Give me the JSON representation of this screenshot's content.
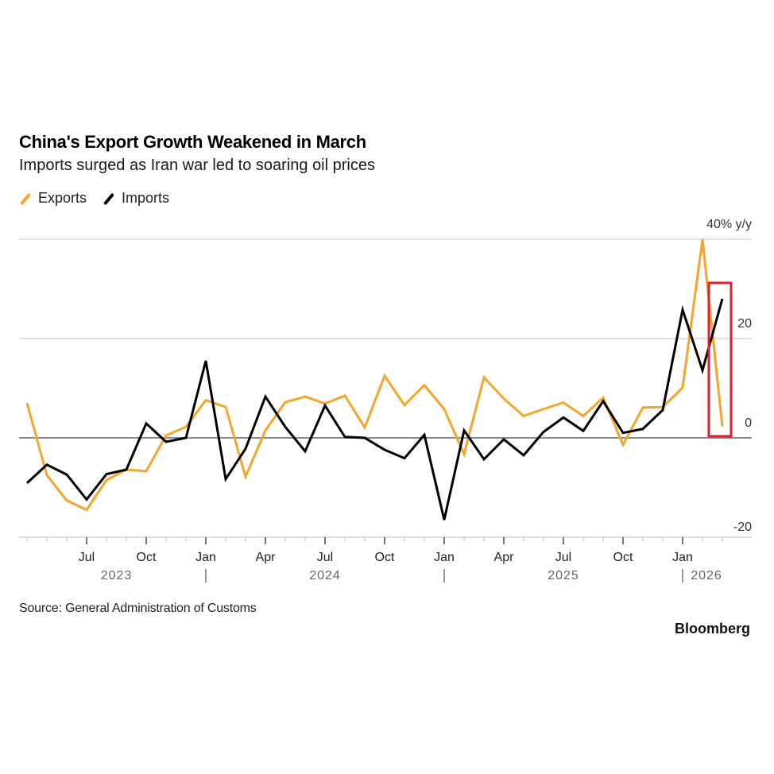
{
  "header": {
    "title": "China's Export Growth Weakened in March",
    "subtitle": "Imports surged as Iran war led to soaring oil prices"
  },
  "legend": [
    {
      "label": "Exports",
      "color": "#f5a52a"
    },
    {
      "label": "Imports",
      "color": "#000000"
    }
  ],
  "footer": {
    "source": "Source: General Administration of Customs",
    "brand": "Bloomberg"
  },
  "highlight": {
    "description": "red box around latest data point",
    "color": "#e0202a"
  },
  "chart_data": {
    "type": "line",
    "title": "China's Export Growth Weakened in March",
    "subtitle": "Imports surged as Iran war led to soaring oil prices",
    "ylabel": "% y/y",
    "ylim": [
      -20,
      40
    ],
    "yticks": [
      {
        "value": 40,
        "label": "40% y/y"
      },
      {
        "value": 20,
        "label": "20"
      },
      {
        "value": 0,
        "label": "0"
      },
      {
        "value": -20,
        "label": "-20"
      }
    ],
    "grid": true,
    "legend_position": "top-left",
    "x": [
      "2023-04",
      "2023-05",
      "2023-06",
      "2023-07",
      "2023-08",
      "2023-09",
      "2023-10",
      "2023-11",
      "2023-12",
      "2024-01",
      "2024-02",
      "2024-03",
      "2024-04",
      "2024-05",
      "2024-06",
      "2024-07",
      "2024-08",
      "2024-09",
      "2024-10",
      "2024-11",
      "2024-12",
      "2025-01",
      "2025-02",
      "2025-03",
      "2025-04",
      "2025-05",
      "2025-06",
      "2025-07",
      "2025-08",
      "2025-09",
      "2025-10",
      "2025-11",
      "2025-12",
      "2026-01",
      "2026-02",
      "2026-03"
    ],
    "month_ticks": [
      {
        "index": 2,
        "label": "Jul"
      },
      {
        "index": 5,
        "label": "Oct"
      },
      {
        "index": 8,
        "label": "Jan"
      },
      {
        "index": 11,
        "label": "Apr"
      },
      {
        "index": 14,
        "label": "Jul"
      },
      {
        "index": 17,
        "label": "Oct"
      },
      {
        "index": 20,
        "label": "Jan"
      },
      {
        "index": 23,
        "label": "Apr"
      },
      {
        "index": 26,
        "label": "Jul"
      },
      {
        "index": 29,
        "label": "Oct"
      },
      {
        "index": 32,
        "label": "Jan"
      }
    ],
    "year_labels": [
      {
        "index": 3.5,
        "label": "2023"
      },
      {
        "index": 14,
        "label": "2024"
      },
      {
        "index": 26,
        "label": "2025"
      },
      {
        "index": 33.2,
        "label": "2026"
      }
    ],
    "year_separators": [
      8,
      20,
      32
    ],
    "series": [
      {
        "name": "Exports",
        "color": "#f5a52a",
        "values": [
          7.0,
          -7.5,
          -12.6,
          -14.5,
          -8.5,
          -6.4,
          -6.7,
          0.5,
          2.2,
          7.6,
          6.2,
          -7.8,
          1.5,
          7.2,
          8.3,
          6.9,
          8.5,
          2.1,
          12.5,
          6.6,
          10.6,
          5.8,
          -3.3,
          12.2,
          7.9,
          4.4,
          5.8,
          7.1,
          4.4,
          8.1,
          -1.4,
          6.1,
          6.2,
          10.1,
          40.0,
          2.3
        ]
      },
      {
        "name": "Imports",
        "color": "#000000",
        "values": [
          -9.1,
          -5.4,
          -7.4,
          -12.4,
          -7.3,
          -6.4,
          2.9,
          -0.8,
          0.0,
          15.5,
          -8.3,
          -2.2,
          8.3,
          2.2,
          -2.7,
          6.5,
          0.2,
          0.0,
          -2.4,
          -4.1,
          0.6,
          -16.5,
          1.5,
          -4.3,
          -0.3,
          -3.5,
          1.2,
          4.1,
          1.4,
          7.4,
          1.0,
          1.8,
          5.6,
          25.8,
          13.6,
          28.0
        ]
      }
    ]
  }
}
